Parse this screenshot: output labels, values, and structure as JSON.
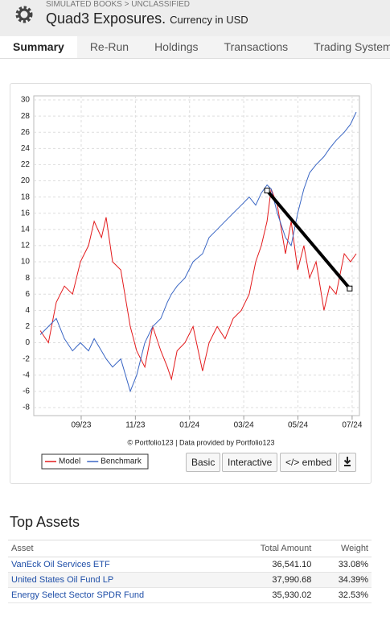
{
  "header": {
    "breadcrumb": "SIMULATED BOOKS > UNCLASSIFIED",
    "title": "Quad3 Exposures.",
    "subtitle": "Currency in USD"
  },
  "tabs": [
    "Summary",
    "Re-Run",
    "Holdings",
    "Transactions",
    "Trading System"
  ],
  "chart_data": {
    "type": "line",
    "x": [
      7.49,
      7.79,
      8.08,
      8.38,
      8.68,
      8.97,
      9.27,
      9.48,
      9.75,
      9.92,
      10.16,
      10.46,
      10.81,
      11.05,
      11.35,
      11.64,
      11.94,
      12.18,
      12.33,
      12.54,
      12.83,
      13.13,
      13.48,
      13.72,
      14.02,
      14.31,
      14.61,
      14.91,
      15.2,
      15.44,
      15.65,
      15.86,
      16.01,
      16.24,
      16.54,
      16.75,
      16.99,
      17.22,
      17.43,
      17.67,
      17.96,
      18.17,
      18.41,
      18.71,
      18.94,
      19.15
    ],
    "series": [
      {
        "name": "Model",
        "color": "#e31a1c",
        "values": [
          1.5,
          0,
          5,
          7,
          6,
          10,
          12,
          15,
          13,
          15.5,
          10,
          9,
          2,
          -1,
          -3,
          2,
          -1,
          -3,
          -4.5,
          -1,
          0,
          2,
          -3.5,
          0,
          2,
          0.5,
          3,
          4,
          6,
          10,
          12,
          15,
          19,
          17,
          11,
          15,
          9,
          12,
          8,
          10,
          4,
          7,
          6,
          11,
          10,
          11
        ]
      },
      {
        "name": "Benchmark",
        "color": "#3a66c4",
        "values": [
          1,
          2,
          3,
          0.5,
          -1,
          0,
          -1,
          0.5,
          -1,
          -2,
          -3,
          -2,
          -6,
          -4,
          0,
          2,
          3,
          5,
          6,
          7,
          8,
          10,
          11,
          13,
          14,
          15,
          16,
          17,
          18,
          17,
          18.5,
          19.5,
          19,
          16,
          13,
          12,
          16,
          19,
          21,
          22,
          23,
          24,
          25,
          26,
          27,
          28.5
        ]
      }
    ],
    "drawdown_line": {
      "color": "#000000",
      "x": [
        15.86,
        18.91
      ],
      "values": [
        18.8,
        6.7
      ]
    },
    "xlim": [
      7.25,
      19.27
    ],
    "xticks": [
      {
        "value": 9,
        "label": "09/23"
      },
      {
        "value": 11,
        "label": "11/23"
      },
      {
        "value": 13,
        "label": "01/24"
      },
      {
        "value": 15,
        "label": "03/24"
      },
      {
        "value": 17,
        "label": "05/24"
      },
      {
        "value": 19,
        "label": "07/24"
      }
    ],
    "ylim": [
      -9,
      30.5
    ],
    "yticks": [
      -8,
      -6,
      -4,
      -2,
      0,
      2,
      4,
      6,
      8,
      10,
      12,
      14,
      16,
      18,
      20,
      22,
      24,
      26,
      28,
      30
    ],
    "grid": true,
    "credit": "© Portfolio123 | Data provided by Portfolio123"
  },
  "buttons": [
    "Basic",
    "Interactive",
    "</> embed"
  ],
  "table": {
    "title": "Top Assets",
    "columns": [
      "Asset",
      "Total Amount",
      "Weight"
    ],
    "rows": [
      [
        "VanEck Oil Services ETF",
        "36,541.10",
        "33.08%"
      ],
      [
        "United States Oil Fund LP",
        "37,990.68",
        "34.39%"
      ],
      [
        "Energy Select Sector SPDR Fund",
        "35,930.02",
        "32.53%"
      ]
    ]
  }
}
